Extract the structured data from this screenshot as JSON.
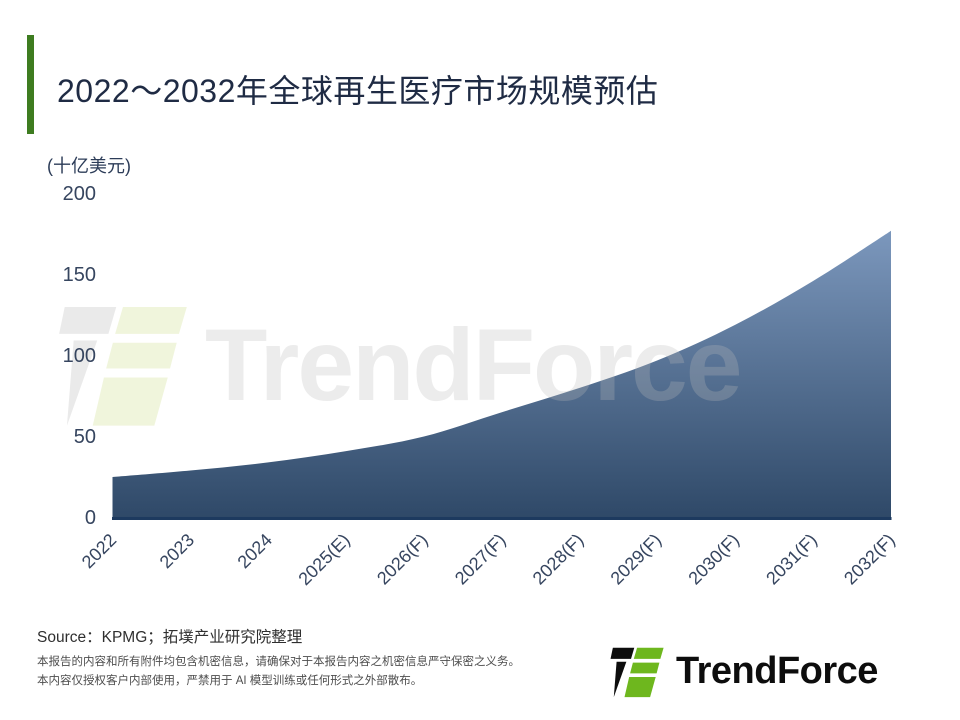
{
  "header": {
    "title": "2022～2032年全球再生医疗市场规模预估",
    "accent_color": "#3e7c20",
    "title_color": "#1f2b44"
  },
  "chart_data": {
    "type": "area",
    "title": "2022～2032年全球再生医疗市场规模预估",
    "unit_label": "(十亿美元)",
    "xlabel": "",
    "ylabel": "十亿美元",
    "categories": [
      "2022",
      "2023",
      "2024",
      "2025(E)",
      "2026(F)",
      "2027(F)",
      "2028(F)",
      "2029(F)",
      "2030(F)",
      "2031(F)",
      "2032(F)"
    ],
    "values": [
      25,
      29,
      34,
      41,
      50,
      65,
      80,
      97,
      119,
      146,
      177
    ],
    "ylim": [
      0,
      200
    ],
    "y_ticks": [
      0,
      50,
      100,
      150,
      200
    ],
    "grid": false,
    "legend": "none",
    "area_gradient_top": "#86a2c8",
    "area_gradient_bottom": "#2e4867",
    "baseline_color": "#1d3a5f"
  },
  "watermark": {
    "text": "TrendForce"
  },
  "footer": {
    "source": "Source：KPMG；拓墣产业研究院整理",
    "disclaimer_line1": "本报告的内容和所有附件均包含机密信息，请确保对于本报告内容之机密信息严守保密之义务。",
    "disclaimer_line2": "本内容仅授权客户内部使用，严禁用于 AI 模型训练或任何形式之外部散布。",
    "logo_text": "TrendForce",
    "logo_green": "#6eb71e",
    "logo_black": "#0d0d0d"
  }
}
